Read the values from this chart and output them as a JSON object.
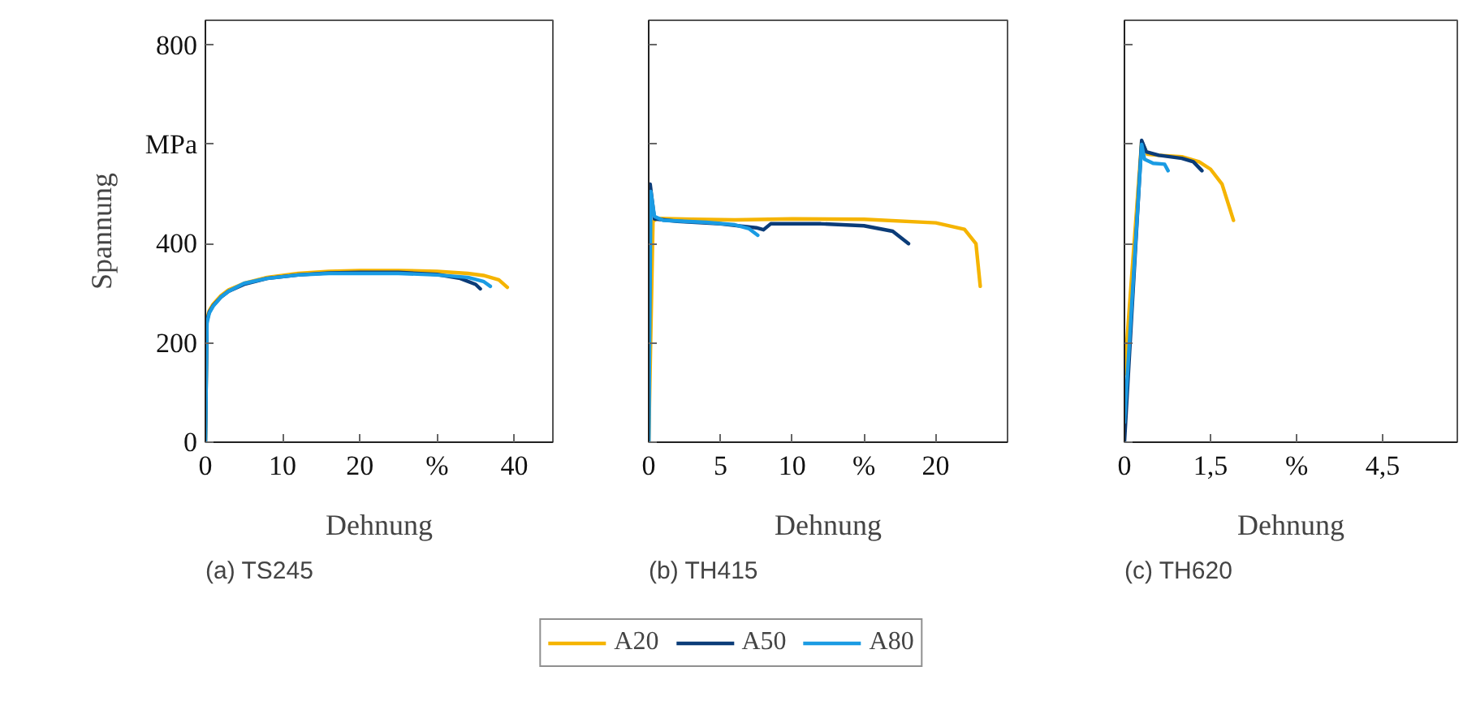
{
  "chart_data": [
    {
      "type": "line",
      "xlabel": "Dehnung",
      "ylabel": "Spannung",
      "annotations": [
        "(a) TS245"
      ],
      "xlim": [
        0,
        45
      ],
      "ylim": [
        0,
        850
      ],
      "xticks": [
        0,
        10,
        20,
        {
          "value": 30,
          "label": "%"
        },
        40
      ],
      "yticks": [
        0,
        200,
        400,
        {
          "value": 600,
          "label": "MPa"
        },
        800
      ],
      "series": [
        {
          "color": "#f5b400",
          "x": [
            0,
            0.2,
            0.5,
            1,
            2,
            3,
            5,
            8,
            12,
            16,
            20,
            25,
            30,
            34,
            36,
            38,
            39.1
          ],
          "values": [
            0,
            250,
            265,
            278,
            295,
            307,
            320,
            332,
            340,
            344,
            346,
            346,
            344,
            340,
            336,
            327,
            312
          ]
        },
        {
          "color": "#0b3c78",
          "x": [
            0,
            0.2,
            0.5,
            1,
            2,
            3,
            5,
            8,
            12,
            16,
            20,
            25,
            30,
            33,
            35,
            35.6
          ],
          "values": [
            0,
            245,
            262,
            275,
            292,
            304,
            318,
            330,
            337,
            341,
            342,
            342,
            338,
            330,
            318,
            309
          ]
        },
        {
          "color": "#1a9be3",
          "x": [
            0,
            0.2,
            0.5,
            1,
            2,
            3,
            5,
            8,
            12,
            16,
            20,
            25,
            30,
            34,
            36,
            36.9
          ],
          "values": [
            0,
            240,
            260,
            274,
            292,
            304,
            320,
            330,
            337,
            340,
            340,
            340,
            337,
            332,
            324,
            314
          ]
        }
      ]
    },
    {
      "type": "line",
      "xlabel": "Dehnung",
      "annotations": [
        "(b) TH415"
      ],
      "legend": "bottom",
      "tick_labels": "x",
      "xlim": [
        0,
        25
      ],
      "ylim": [
        0,
        850
      ],
      "xticks": [
        0,
        5,
        10,
        {
          "value": 15,
          "label": "%"
        },
        20
      ],
      "yticks": [
        0,
        200,
        400,
        600,
        800
      ],
      "series": [
        {
          "name": "A20",
          "color": "#f5b400",
          "x": [
            0,
            0.3,
            0.6,
            3,
            6,
            10,
            15,
            20,
            22,
            22.8,
            23.1
          ],
          "values": [
            0,
            445,
            451,
            449,
            448,
            450,
            449,
            442,
            429,
            400,
            314
          ]
        },
        {
          "name": "A50",
          "color": "#0b3c78",
          "x": [
            0,
            0.1,
            0.4,
            2,
            5,
            7.5,
            8,
            8.5,
            12,
            15,
            17,
            18.1
          ],
          "values": [
            0,
            520,
            450,
            445,
            440,
            432,
            428,
            440,
            440,
            436,
            425,
            400
          ]
        },
        {
          "name": "A80",
          "color": "#1a9be3",
          "x": [
            0,
            0.15,
            0.4,
            1,
            4,
            6,
            7,
            7.6
          ],
          "values": [
            0,
            505,
            455,
            447,
            443,
            438,
            430,
            417
          ]
        }
      ]
    },
    {
      "type": "line",
      "xlabel": "Dehnung",
      "annotations": [
        "(c) TH620"
      ],
      "tick_labels": "x",
      "xlim": [
        0,
        5.8
      ],
      "ylim": [
        0,
        850
      ],
      "xticks": [
        0,
        {
          "value": 1.5,
          "label": "1,5"
        },
        {
          "value": 3,
          "label": "%"
        },
        {
          "value": 4.5,
          "label": "4,5"
        }
      ],
      "yticks": [
        0,
        200,
        400,
        600,
        800
      ],
      "series": [
        {
          "color": "#f5b400",
          "x": [
            0,
            0.3,
            0.4,
            0.6,
            1,
            1.3,
            1.5,
            1.7,
            1.9
          ],
          "values": [
            137,
            606,
            580,
            578,
            575,
            565,
            550,
            520,
            447
          ]
        },
        {
          "color": "#0b3c78",
          "x": [
            0,
            0.3,
            0.38,
            0.6,
            1,
            1.2,
            1.35
          ],
          "values": [
            0,
            608,
            585,
            578,
            572,
            565,
            547
          ]
        },
        {
          "color": "#1a9be3",
          "x": [
            0,
            0.3,
            0.35,
            0.5,
            0.7,
            0.76
          ],
          "values": [
            40,
            600,
            570,
            562,
            560,
            547
          ]
        }
      ]
    }
  ]
}
